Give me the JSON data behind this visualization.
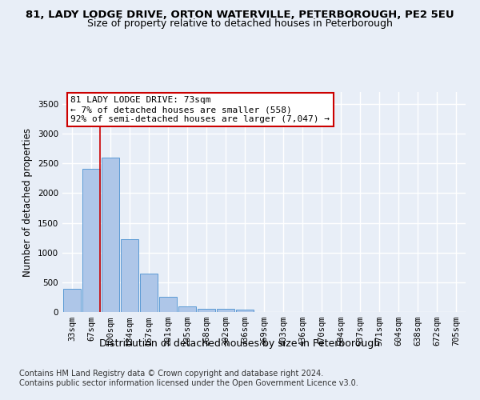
{
  "title_line1": "81, LADY LODGE DRIVE, ORTON WATERVILLE, PETERBOROUGH, PE2 5EU",
  "title_line2": "Size of property relative to detached houses in Peterborough",
  "xlabel": "Distribution of detached houses by size in Peterborough",
  "ylabel": "Number of detached properties",
  "footer_line1": "Contains HM Land Registry data © Crown copyright and database right 2024.",
  "footer_line2": "Contains public sector information licensed under the Open Government Licence v3.0.",
  "bar_labels": [
    "33sqm",
    "67sqm",
    "100sqm",
    "134sqm",
    "167sqm",
    "201sqm",
    "235sqm",
    "268sqm",
    "302sqm",
    "336sqm",
    "369sqm",
    "403sqm",
    "436sqm",
    "470sqm",
    "504sqm",
    "537sqm",
    "571sqm",
    "604sqm",
    "638sqm",
    "672sqm",
    "705sqm"
  ],
  "bar_values": [
    390,
    2410,
    2600,
    1230,
    640,
    255,
    90,
    55,
    55,
    40,
    0,
    0,
    0,
    0,
    0,
    0,
    0,
    0,
    0,
    0,
    0
  ],
  "bar_color": "#aec6e8",
  "bar_edge_color": "#5b9bd5",
  "highlight_bar_index": 1,
  "annotation_text": "81 LADY LODGE DRIVE: 73sqm\n← 7% of detached houses are smaller (558)\n92% of semi-detached houses are larger (7,047) →",
  "annotation_box_color": "#ffffff",
  "annotation_box_edge_color": "#cc0000",
  "vline_color": "#cc0000",
  "ylim": [
    0,
    3700
  ],
  "yticks": [
    0,
    500,
    1000,
    1500,
    2000,
    2500,
    3000,
    3500
  ],
  "background_color": "#e8eef7",
  "plot_bg_color": "#e8eef7",
  "grid_color": "#ffffff",
  "title1_fontsize": 9.5,
  "title2_fontsize": 9,
  "ylabel_fontsize": 8.5,
  "xlabel_fontsize": 9,
  "tick_fontsize": 7.5,
  "annotation_fontsize": 8,
  "footer_fontsize": 7
}
